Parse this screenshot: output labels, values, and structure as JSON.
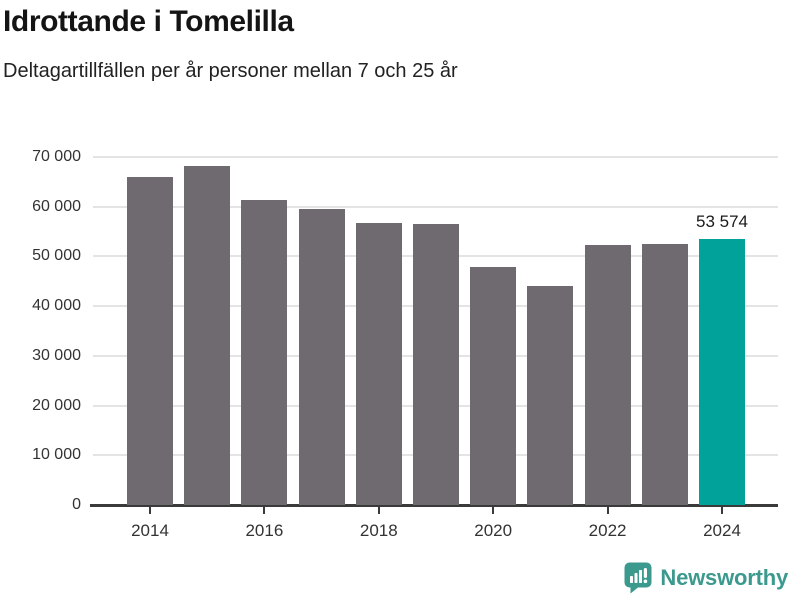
{
  "header": {
    "title": "Idrottande i Tomelilla",
    "subtitle": "Deltagartillfällen per år personer mellan 7 och 25 år"
  },
  "chart_data": {
    "type": "bar",
    "title": "Idrottande i Tomelilla",
    "subtitle": "Deltagartillfällen per år personer mellan 7 och 25 år",
    "categories": [
      "2014",
      "2015",
      "2016",
      "2017",
      "2018",
      "2019",
      "2020",
      "2021",
      "2022",
      "2023",
      "2024"
    ],
    "values": [
      66000,
      68200,
      61400,
      59600,
      56800,
      56500,
      47900,
      44100,
      52200,
      52600,
      53574
    ],
    "highlight_index": 10,
    "highlight_value_label": "53 574",
    "ylim": [
      0,
      70000
    ],
    "yticks": [
      {
        "value": 0,
        "label": "0"
      },
      {
        "value": 10000,
        "label": "10 000"
      },
      {
        "value": 20000,
        "label": "20 000"
      },
      {
        "value": 30000,
        "label": "30 000"
      },
      {
        "value": 40000,
        "label": "40 000"
      },
      {
        "value": 50000,
        "label": "50 000"
      },
      {
        "value": 60000,
        "label": "60 000"
      },
      {
        "value": 70000,
        "label": "70 000"
      }
    ],
    "xtick_labels": [
      "2014",
      "2016",
      "2018",
      "2020",
      "2022",
      "2024"
    ],
    "xtick_every": 2,
    "grid": true,
    "legend": "none",
    "colors": {
      "bar": "#6e6a6f",
      "highlight": "#00a29a",
      "grid": "#e4e4e4",
      "axis": "#3a3a3a",
      "tick_label": "#333333",
      "value_label": "#1a1a1a"
    }
  },
  "footer": {
    "brand": "Newsworthy",
    "brand_color": "#3b998e",
    "logo_icon": "bar-chart-speech-bubble-icon"
  }
}
